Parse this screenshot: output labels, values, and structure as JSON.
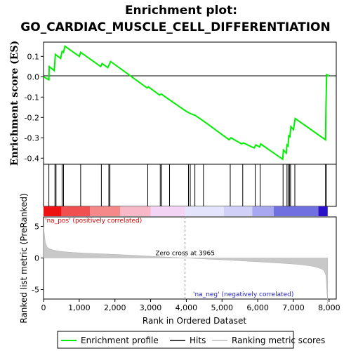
{
  "chart_data": {
    "type": "line",
    "title_line1": "Enrichment plot:",
    "title_line2": "GO_CARDIAC_MUSCLE_CELL_DIFFERENTIATION",
    "ylabel_top": "Enrichment score (ES)",
    "ylabel_bottom": "Ranked list metric (PreRanked)",
    "xlabel": "Rank in Ordered Dataset",
    "xlim": [
      0,
      8200
    ],
    "xticks": [
      "0",
      "1,000",
      "2,000",
      "3,000",
      "4,000",
      "5,000",
      "6,000",
      "7,000",
      "8,000"
    ],
    "xtick_values": [
      0,
      1000,
      2000,
      3000,
      4000,
      5000,
      6000,
      7000,
      8000
    ],
    "es_ylim": [
      -0.43,
      0.17
    ],
    "es_yticks": [
      "0.1",
      "0.0",
      "-0.1",
      "-0.2",
      "-0.3",
      "-0.4"
    ],
    "es_ytick_values": [
      0.1,
      0.0,
      -0.1,
      -0.2,
      -0.3,
      -0.4
    ],
    "metric_ylim": [
      -6.5,
      6.5
    ],
    "metric_yticks": [
      "5",
      "0",
      "-5"
    ],
    "metric_ytick_values": [
      5,
      0,
      -5
    ],
    "es_line_color": "#00ee00",
    "hit_color": "#000000",
    "enrichment_profile": {
      "x": [
        0,
        150,
        160,
        300,
        330,
        480,
        520,
        560,
        600,
        1000,
        1040,
        1600,
        1640,
        1800,
        1840,
        1880,
        2900,
        2940,
        3250,
        3300,
        3500,
        4000,
        4100,
        4250,
        4500,
        5200,
        5250,
        5550,
        5600,
        5900,
        5950,
        6050,
        6080,
        6700,
        6720,
        6800,
        6820,
        6850,
        6870,
        6900,
        6930,
        7000,
        7050,
        7900,
        7910,
        7930,
        8000
      ],
      "y": [
        0.0,
        -0.015,
        0.05,
        0.03,
        0.11,
        0.09,
        0.125,
        0.12,
        0.15,
        0.1,
        0.12,
        0.05,
        0.065,
        0.045,
        0.06,
        0.075,
        -0.055,
        -0.05,
        -0.09,
        -0.085,
        -0.11,
        -0.17,
        -0.18,
        -0.19,
        -0.22,
        -0.31,
        -0.3,
        -0.33,
        -0.325,
        -0.35,
        -0.335,
        -0.345,
        -0.33,
        -0.405,
        -0.36,
        -0.375,
        -0.335,
        -0.34,
        -0.29,
        -0.295,
        -0.245,
        -0.26,
        -0.205,
        -0.31,
        -0.155,
        0.01,
        0.005
      ]
    },
    "hits": [
      150,
      320,
      350,
      520,
      560,
      1040,
      1620,
      1830,
      1860,
      2920,
      3270,
      3310,
      3530,
      4060,
      4110,
      4240,
      4480,
      5230,
      5580,
      5930,
      6070,
      6710,
      6820,
      6860,
      6890,
      6920,
      7040,
      7900,
      7920
    ],
    "zero_cross": 3965,
    "zero_cross_label": "Zero cross at 3965",
    "pos_label": "'na_pos' (positively correlated)",
    "neg_label": "'na_neg' (negatively correlated)",
    "pos_color": "#dd0000",
    "neg_color": "#2222cc",
    "legend": [
      {
        "label": "Enrichment profile",
        "color": "#00ee00"
      },
      {
        "label": "Hits",
        "color": "#444444"
      },
      {
        "label": "Ranking metric scores",
        "color": "#cccccc"
      }
    ]
  }
}
